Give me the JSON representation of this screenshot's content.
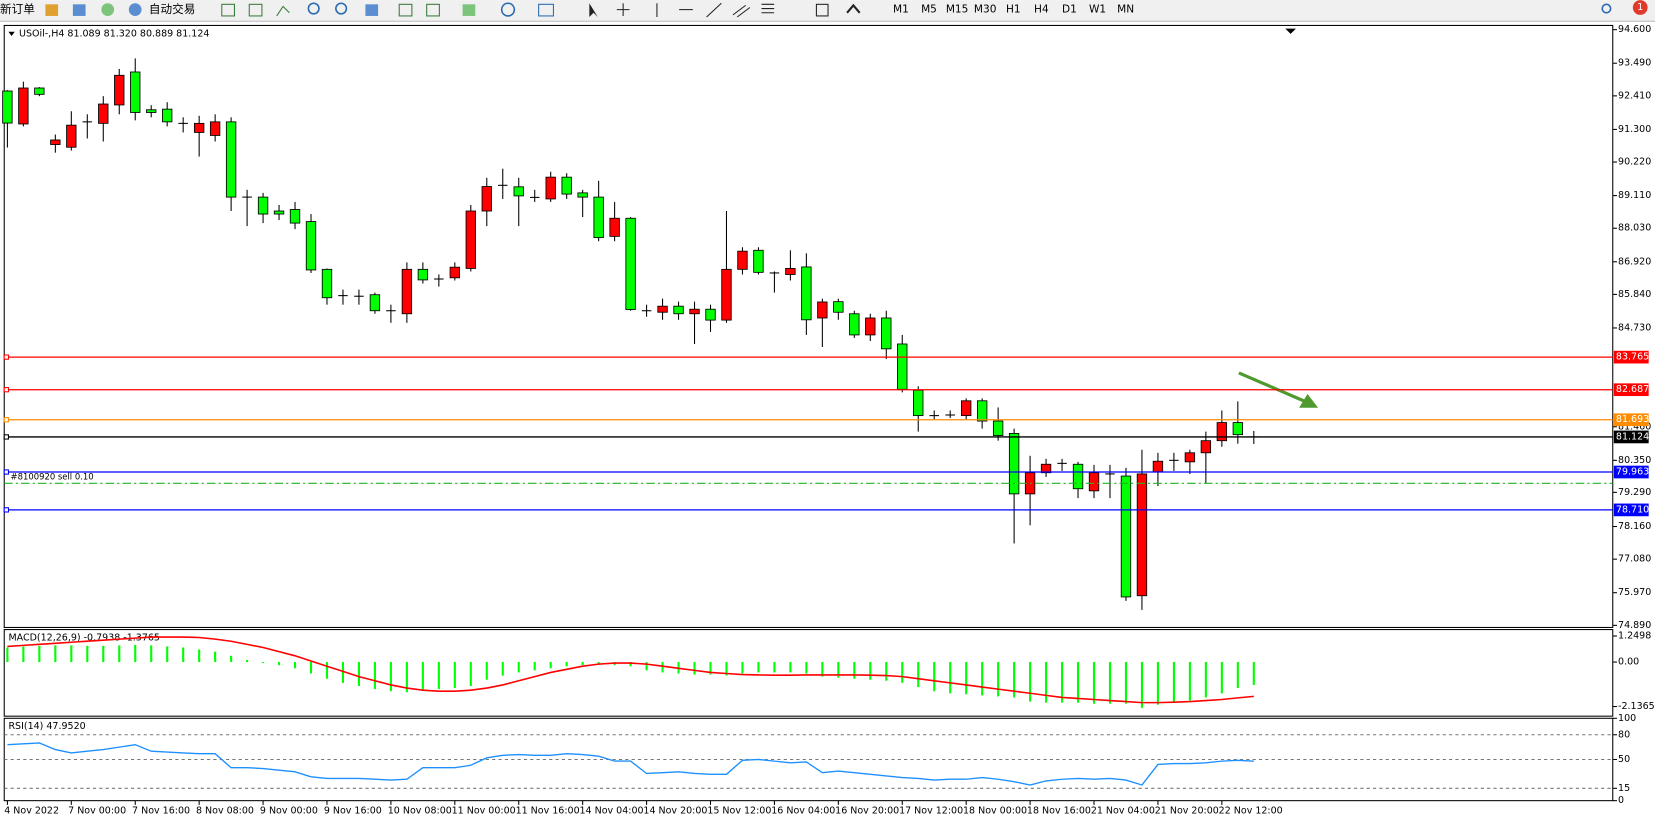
{
  "toolbar": {
    "new_order": "新订单",
    "auto_trading": "自动交易",
    "timeframes": [
      "M1",
      "M5",
      "M15",
      "M30",
      "H1",
      "H4",
      "D1",
      "W1",
      "MN"
    ],
    "alerts": "1"
  },
  "chart_data": [
    {
      "type": "candlestick",
      "title": "USOil-,H4  81.089 81.320 80.889 81.124",
      "categories": [
        "4 Nov 2022",
        null,
        null,
        null,
        "7 Nov 00:00",
        null,
        null,
        null,
        "7 Nov 16:00",
        null,
        null,
        null,
        "8 Nov 08:00",
        null,
        null,
        null,
        "9 Nov 00:00",
        null,
        null,
        null,
        "9 Nov 16:00",
        null,
        null,
        null,
        "10 Nov 08:00",
        null,
        null,
        null,
        "11 Nov 00:00",
        null,
        null,
        null,
        "11 Nov 16:00",
        null,
        null,
        null,
        "14 Nov 04:00",
        null,
        null,
        null,
        "14 Nov 20:00",
        null,
        null,
        null,
        "15 Nov 12:00",
        null,
        null,
        null,
        "16 Nov 04:00",
        null,
        null,
        null,
        "16 Nov 20:00",
        null,
        null,
        null,
        "17 Nov 12:00",
        null,
        null,
        null,
        "18 Nov 00:00",
        null,
        null,
        null,
        "18 Nov 16:00",
        null,
        null,
        null,
        "21 Nov 04:00",
        null,
        null,
        null,
        "21 Nov 20:00",
        null,
        null,
        null,
        "22 Nov 12:00",
        null,
        null
      ],
      "open": [
        92.57,
        91.48,
        92.67,
        90.8,
        90.71,
        91.5,
        91.5,
        92.11,
        93.2,
        91.95,
        91.97,
        91.55,
        91.2,
        91.1,
        91.55,
        89.1,
        89.06,
        88.6,
        88.65,
        88.25,
        86.67,
        85.8,
        85.8,
        85.83,
        85.3,
        85.2,
        86.67,
        86.3,
        86.39,
        86.7,
        88.6,
        89.4,
        89.4,
        89.05,
        89.0,
        89.72,
        89.2,
        89.06,
        87.76,
        88.36,
        85.35,
        85.25,
        85.45,
        85.2,
        85.35,
        84.99,
        86.67,
        87.3,
        86.55,
        86.5,
        86.75,
        85.06,
        85.6,
        85.2,
        84.5,
        85.06,
        84.2,
        82.67,
        81.83,
        81.85,
        81.83,
        82.32,
        81.65,
        81.24,
        79.24,
        79.94,
        80.25,
        80.22,
        79.34,
        79.9,
        79.83,
        75.87,
        79.97,
        80.35,
        80.3,
        80.6,
        81.0,
        81.6,
        81.089
      ],
      "high": [
        92.6,
        92.88,
        92.7,
        91.13,
        91.9,
        91.8,
        92.4,
        93.3,
        93.65,
        92.1,
        92.2,
        91.7,
        91.75,
        91.8,
        91.7,
        89.3,
        89.2,
        88.8,
        88.9,
        88.5,
        86.7,
        86.0,
        86.0,
        85.9,
        85.5,
        86.9,
        86.9,
        86.5,
        86.9,
        88.8,
        89.7,
        90.0,
        89.7,
        89.3,
        89.9,
        89.85,
        89.3,
        89.6,
        88.9,
        88.4,
        85.5,
        85.7,
        85.6,
        85.6,
        85.5,
        88.6,
        87.4,
        87.4,
        86.6,
        87.3,
        87.2,
        85.7,
        85.7,
        85.3,
        85.2,
        85.3,
        84.5,
        82.8,
        82.0,
        82.0,
        82.4,
        82.4,
        82.1,
        81.4,
        80.5,
        80.4,
        80.4,
        80.3,
        80.2,
        80.2,
        80.1,
        80.7,
        80.6,
        80.6,
        80.7,
        81.3,
        82.0,
        82.3,
        81.32
      ],
      "low": [
        90.7,
        91.4,
        92.4,
        90.53,
        90.6,
        91.0,
        90.9,
        91.8,
        91.6,
        91.7,
        91.4,
        91.2,
        90.4,
        90.9,
        88.6,
        88.1,
        88.2,
        88.3,
        88.0,
        86.55,
        85.5,
        85.5,
        85.5,
        85.2,
        84.9,
        84.9,
        86.2,
        86.1,
        86.3,
        86.6,
        88.1,
        89.0,
        88.1,
        88.9,
        88.9,
        89.0,
        88.4,
        87.6,
        87.6,
        85.3,
        85.1,
        85.0,
        85.0,
        84.2,
        84.6,
        84.9,
        86.5,
        86.5,
        85.9,
        86.3,
        84.5,
        84.1,
        85.0,
        84.4,
        84.3,
        83.7,
        82.6,
        81.3,
        81.7,
        81.75,
        81.7,
        81.4,
        81.0,
        77.6,
        78.2,
        79.8,
        80.0,
        79.1,
        79.1,
        79.1,
        75.7,
        75.4,
        79.5,
        80.0,
        79.9,
        79.6,
        80.8,
        80.9,
        80.889
      ],
      "close": [
        91.51,
        92.67,
        92.46,
        90.95,
        91.44,
        91.55,
        92.14,
        93.09,
        91.86,
        91.86,
        91.55,
        91.5,
        91.5,
        91.55,
        89.06,
        89.06,
        88.5,
        88.5,
        88.2,
        86.65,
        85.73,
        85.8,
        85.78,
        85.3,
        85.3,
        86.67,
        86.32,
        86.35,
        86.74,
        88.6,
        89.41,
        89.45,
        89.1,
        89.05,
        89.72,
        89.16,
        89.06,
        87.72,
        88.36,
        85.34,
        85.3,
        85.45,
        85.2,
        85.35,
        84.99,
        86.67,
        87.27,
        86.57,
        86.55,
        86.7,
        85.0,
        85.59,
        85.25,
        84.5,
        85.06,
        84.04,
        82.7,
        81.83,
        81.83,
        81.85,
        82.32,
        81.65,
        81.17,
        79.24,
        79.94,
        80.22,
        80.25,
        79.41,
        79.94,
        79.9,
        75.83,
        79.9,
        80.32,
        80.35,
        80.6,
        81.0,
        81.6,
        81.2,
        81.124
      ],
      "up_color": "#ff0000",
      "down_color": "#00ff00",
      "ylim": [
        74.82,
        94.74
      ],
      "yticks": [
        {
          "value": 94.6,
          "label": "94.600"
        },
        {
          "value": 93.49,
          "label": "93.490"
        },
        {
          "value": 92.41,
          "label": "92.410"
        },
        {
          "value": 91.3,
          "label": "91.300"
        },
        {
          "value": 90.22,
          "label": "90.220"
        },
        {
          "value": 89.11,
          "label": "89.110"
        },
        {
          "value": 88.03,
          "label": "88.030"
        },
        {
          "value": 86.92,
          "label": "86.920"
        },
        {
          "value": 85.84,
          "label": "85.840"
        },
        {
          "value": 84.73,
          "label": "84.730"
        },
        {
          "value": 81.46,
          "label": "81.460"
        },
        {
          "value": 80.35,
          "label": "80.350"
        },
        {
          "value": 79.29,
          "label": "79.290"
        },
        {
          "value": 78.16,
          "label": "78.160"
        },
        {
          "value": 77.08,
          "label": "77.080"
        },
        {
          "value": 75.97,
          "label": "75.970"
        },
        {
          "value": 74.89,
          "label": "74.890"
        }
      ],
      "levels": [
        {
          "value": 83.765,
          "color": "#ff0000"
        },
        {
          "value": 82.687,
          "color": "#ff0000"
        },
        {
          "value": 81.693,
          "color": "#ff8c00"
        },
        {
          "value": 81.124,
          "color": "#000000"
        },
        {
          "value": 79.963,
          "color": "#0000ff"
        },
        {
          "value": 78.71,
          "label": "78.710",
          "color": "#0000ff"
        }
      ],
      "order_line": {
        "value": 79.59,
        "label": "#8100920 sell 0.10",
        "color": "#22b422"
      }
    },
    {
      "type": "macd",
      "title": "MACD(12,26,9) -0.7938 -1.3765",
      "series": [
        {
          "color": "#00ff00",
          "values": [
            0.7,
            0.75,
            0.78,
            0.8,
            0.8,
            0.78,
            0.78,
            0.8,
            0.82,
            0.8,
            0.75,
            0.7,
            0.6,
            0.5,
            0.3,
            0.1,
            -0.05,
            -0.15,
            -0.3,
            -0.55,
            -0.8,
            -1.0,
            -1.15,
            -1.3,
            -1.4,
            -1.45,
            -1.35,
            -1.3,
            -1.25,
            -1.15,
            -0.85,
            -0.65,
            -0.5,
            -0.4,
            -0.3,
            -0.2,
            -0.15,
            -0.1,
            -0.15,
            -0.2,
            -0.4,
            -0.5,
            -0.55,
            -0.6,
            -0.6,
            -0.65,
            -0.55,
            -0.5,
            -0.5,
            -0.5,
            -0.55,
            -0.7,
            -0.75,
            -0.8,
            -0.85,
            -0.9,
            -1.0,
            -1.2,
            -1.4,
            -1.5,
            -1.55,
            -1.6,
            -1.65,
            -1.7,
            -1.9,
            -1.95,
            -1.95,
            -1.95,
            -2.0,
            -2.0,
            -2.0,
            -2.2,
            -2.05,
            -1.95,
            -1.85,
            -1.7,
            -1.5,
            -1.25,
            -1.1
          ]
        },
        {
          "color": "#ff0000",
          "values": [
            0.75,
            0.8,
            0.85,
            0.9,
            0.95,
            1.0,
            1.05,
            1.1,
            1.15,
            1.2,
            1.2,
            1.2,
            1.18,
            1.1,
            1.0,
            0.85,
            0.7,
            0.5,
            0.3,
            0.05,
            -0.2,
            -0.45,
            -0.7,
            -0.9,
            -1.1,
            -1.25,
            -1.35,
            -1.4,
            -1.4,
            -1.35,
            -1.25,
            -1.1,
            -0.9,
            -0.7,
            -0.5,
            -0.35,
            -0.2,
            -0.1,
            -0.05,
            -0.05,
            -0.1,
            -0.2,
            -0.3,
            -0.4,
            -0.5,
            -0.55,
            -0.6,
            -0.62,
            -0.63,
            -0.63,
            -0.62,
            -0.62,
            -0.62,
            -0.62,
            -0.63,
            -0.65,
            -0.7,
            -0.8,
            -0.9,
            -1.0,
            -1.1,
            -1.2,
            -1.3,
            -1.4,
            -1.5,
            -1.6,
            -1.7,
            -1.75,
            -1.8,
            -1.85,
            -1.9,
            -1.95,
            -1.95,
            -1.93,
            -1.9,
            -1.85,
            -1.8,
            -1.72,
            -1.65
          ]
        }
      ],
      "ylim": [
        -2.6,
        1.56
      ],
      "yticks": [
        1.2498,
        {
          "value": 0,
          "label": "0.00"
        },
        -2.1365
      ]
    },
    {
      "type": "line",
      "title": "RSI(14) 47.9520",
      "color": "#1e90ff",
      "values": [
        68,
        69,
        70,
        62,
        58,
        60,
        62,
        65,
        68,
        60,
        59,
        58,
        57,
        57,
        40,
        40,
        39,
        37,
        35,
        29,
        27,
        27,
        27,
        26,
        25,
        26,
        40,
        40,
        40,
        43,
        52,
        55,
        56,
        55,
        55,
        57,
        56,
        54,
        48,
        48,
        33,
        34,
        35,
        33,
        32,
        32,
        49,
        50,
        48,
        46,
        47,
        34,
        36,
        34,
        32,
        30,
        28,
        27,
        25,
        26,
        26,
        28,
        26,
        23,
        19,
        24,
        26,
        27,
        26,
        27,
        25,
        19,
        44,
        45,
        45,
        46,
        48,
        49,
        47.952
      ],
      "ylim": [
        0,
        100
      ],
      "yticks": [
        100,
        80,
        50,
        15,
        0
      ]
    }
  ]
}
